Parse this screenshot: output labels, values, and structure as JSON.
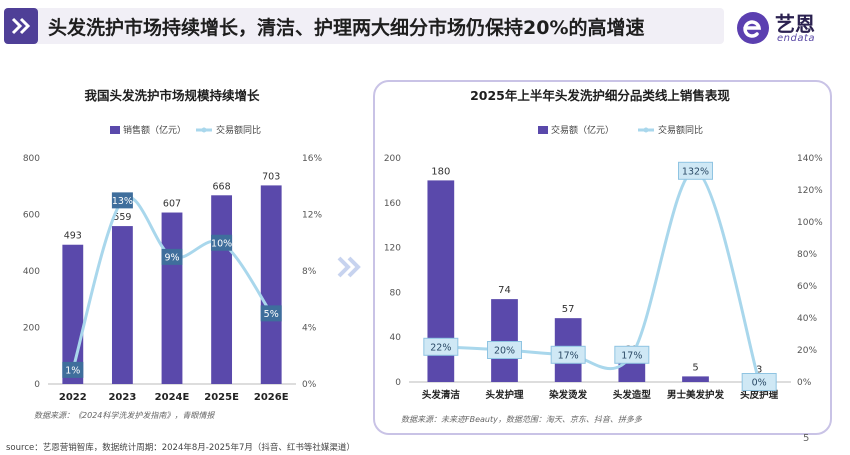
{
  "header": {
    "title": "头发洗护市场持续增长，清洁、护理两大细分市场仍保持20%的高增速",
    "logo_text": "艺恩",
    "logo_sub": "endata"
  },
  "colors": {
    "bar": "#5a49ab",
    "line": "#a9d7ec",
    "label_box_left": "#3f6e9c",
    "label_box_right": "#cfe8f5"
  },
  "chart_data": [
    {
      "type": "bar",
      "title": "我国头发洗护市场规模持续增长",
      "legend": [
        "销售额（亿元）",
        "交易额同比"
      ],
      "categories": [
        "2022",
        "2023",
        "2024E",
        "2025E",
        "2026E"
      ],
      "series": [
        {
          "name": "销售额（亿元）",
          "type": "bar",
          "axis": "left",
          "values": [
            493,
            559,
            607,
            668,
            703
          ]
        },
        {
          "name": "交易额同比",
          "type": "line",
          "axis": "right",
          "values": [
            1,
            13,
            9,
            10,
            5
          ],
          "labels": [
            "1%",
            "13%",
            "9%",
            "10%",
            "5%"
          ]
        }
      ],
      "ylim_left": [
        0,
        800
      ],
      "yticks_left": [
        "0",
        "200",
        "400",
        "600",
        "800"
      ],
      "ylim_right": [
        0,
        16
      ],
      "yticks_right": [
        "0%",
        "4%",
        "8%",
        "12%",
        "16%"
      ],
      "source": "数据来源：《2024科学洗发护发指南》，青眼情报"
    },
    {
      "type": "bar",
      "title": "2025年上半年头发洗护细分品类线上销售表现",
      "legend": [
        "交易额（亿元）",
        "交易额同比"
      ],
      "categories": [
        "头发清洁",
        "头发护理",
        "染发烫发",
        "头发造型",
        "男士美发护发",
        "头皮护理"
      ],
      "series": [
        {
          "name": "交易额（亿元）",
          "type": "bar",
          "axis": "left",
          "values": [
            180,
            74,
            57,
            21,
            5,
            3
          ]
        },
        {
          "name": "交易额同比",
          "type": "line",
          "axis": "right",
          "values": [
            22,
            20,
            17,
            17,
            132,
            0
          ],
          "labels": [
            "22%",
            "20%",
            "17%",
            "17%",
            "132%",
            "0%"
          ]
        }
      ],
      "ylim_left": [
        0,
        200
      ],
      "yticks_left": [
        "0",
        "40",
        "80",
        "120",
        "160",
        "200"
      ],
      "ylim_right": [
        0,
        140
      ],
      "yticks_right": [
        "0%",
        "20%",
        "40%",
        "60%",
        "80%",
        "100%",
        "120%",
        "140%"
      ],
      "source": "数据来源：未来迹FBeauty，数据范围：淘天、京东、抖音、拼多多"
    }
  ],
  "footer": {
    "source": "source：艺恩营销智库，数据统计周期：2024年8月-2025年7月（抖音、红书等社媒渠道）",
    "page": "5"
  }
}
